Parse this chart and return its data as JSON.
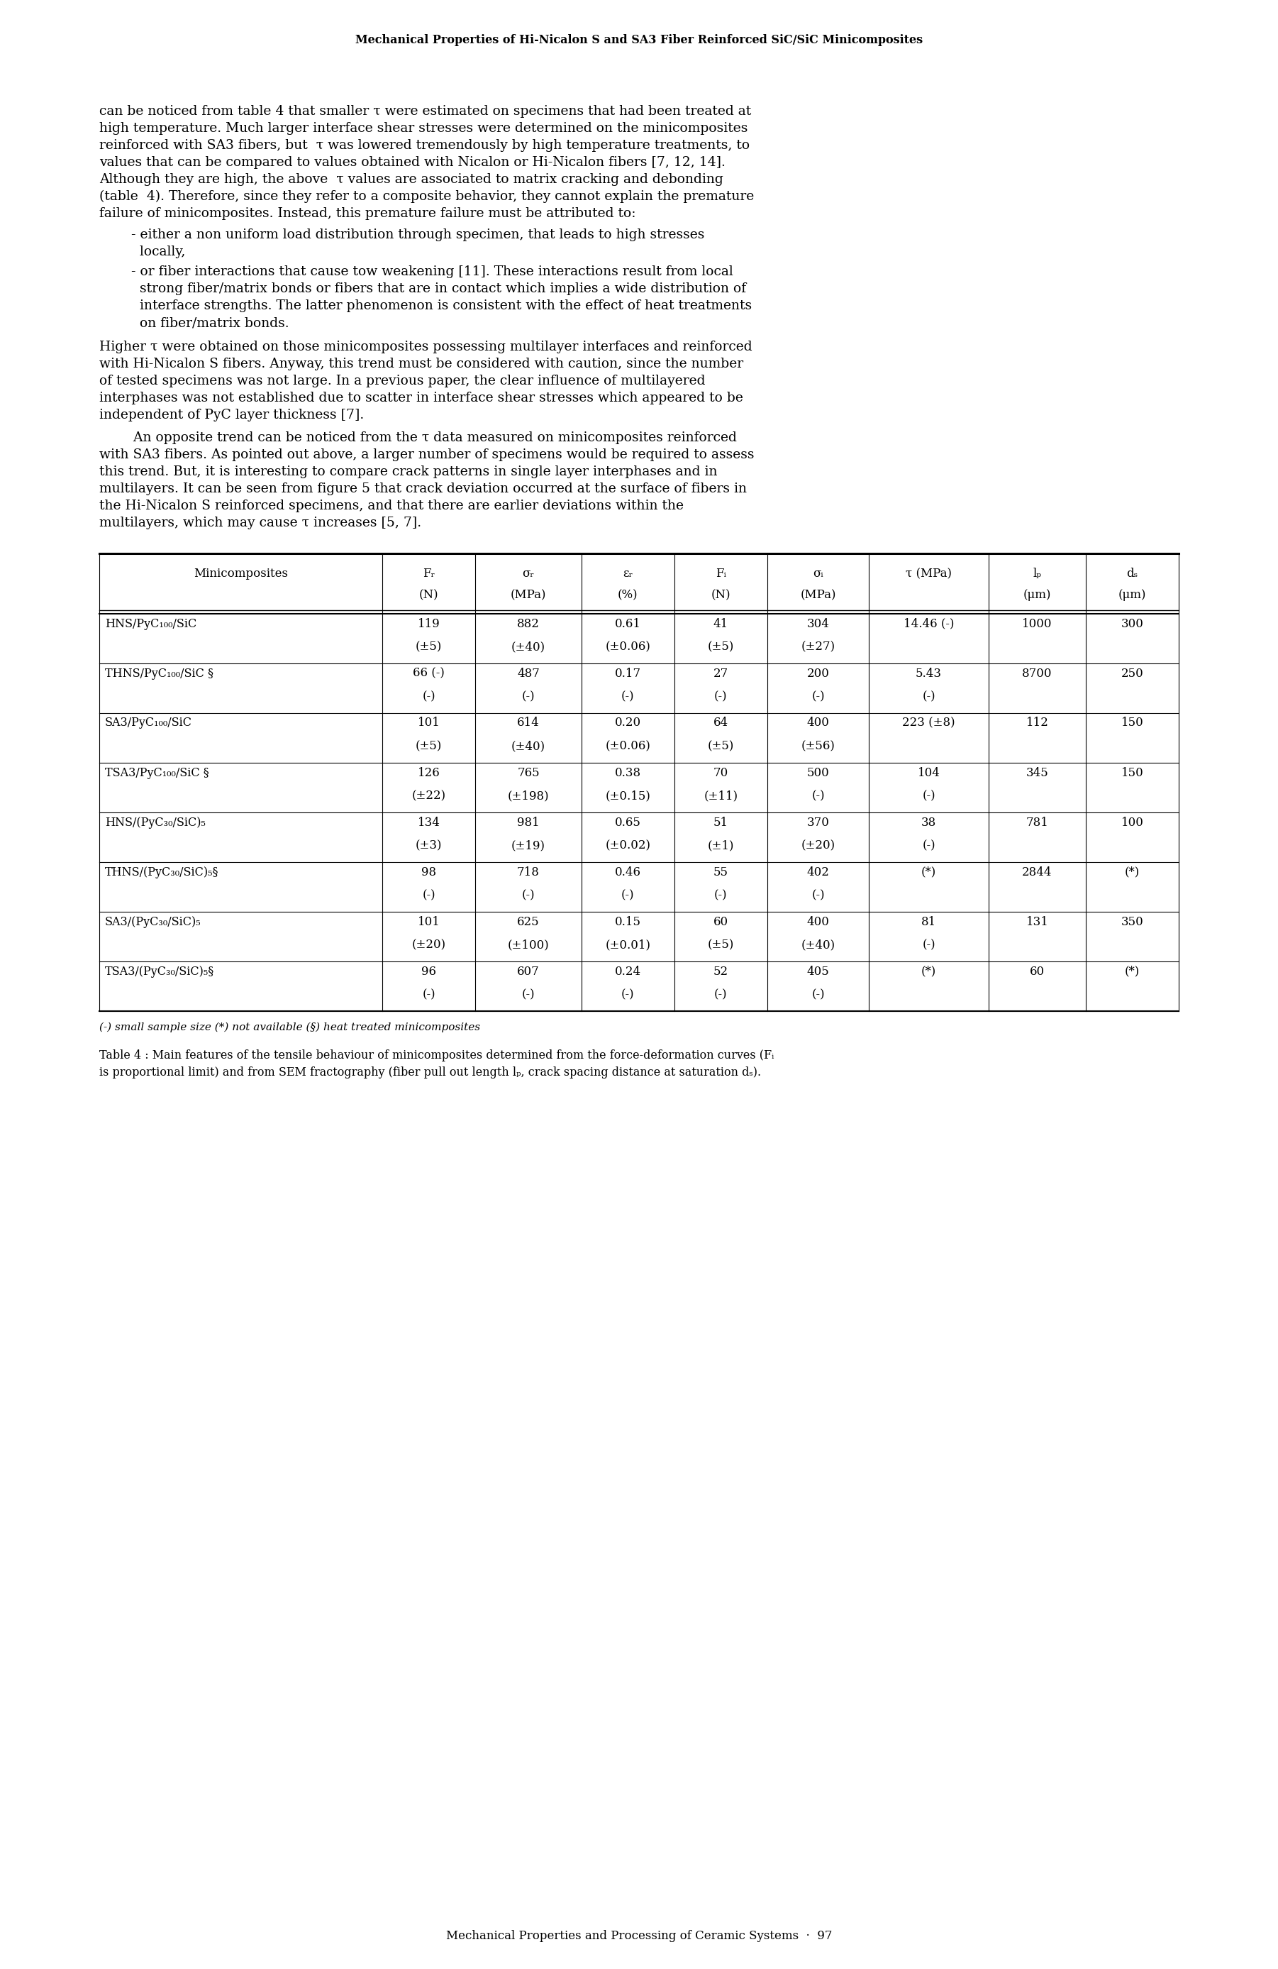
{
  "page_header": "Mechanical Properties of Hi-Nicalon S and SA3 Fiber Reinforced SiC/SiC Minicomposites",
  "page_footer": "Mechanical Properties and Processing of Ceramic Systems  ·  97",
  "para1_lines": [
    "can be noticed from table 4 that smaller τ were estimated on specimens that had been treated at",
    "high temperature. Much larger interface shear stresses were determined on the minicomposites",
    "reinforced with SA3 fibers, but  τ was lowered tremendously by high temperature treatments, to",
    "values that can be compared to values obtained with Nicalon or Hi-Nicalon fibers [7, 12, 14].",
    "Although they are high, the above  τ values are associated to matrix cracking and debonding",
    "(table  4). Therefore, since they refer to a composite behavior, they cannot explain the premature",
    "failure of minicomposites. Instead, this premature failure must be attributed to:"
  ],
  "bullet1_lines": [
    "- either a non uniform load distribution through specimen, that leads to high stresses",
    "  locally,"
  ],
  "bullet2_lines": [
    "- or fiber interactions that cause tow weakening [11]. These interactions result from local",
    "  strong fiber/matrix bonds or fibers that are in contact which implies a wide distribution of",
    "  interface strengths. The latter phenomenon is consistent with the effect of heat treatments",
    "  on fiber/matrix bonds."
  ],
  "para2_lines": [
    "Higher τ were obtained on those minicomposites possessing multilayer interfaces and reinforced",
    "with Hi-Nicalon S fibers. Anyway, this trend must be considered with caution, since the number",
    "of tested specimens was not large. In a previous paper, the clear influence of multilayered",
    "interphases was not established due to scatter in interface shear stresses which appeared to be",
    "independent of PyC layer thickness [7]."
  ],
  "para3_lines": [
    "        An opposite trend can be noticed from the τ data measured on minicomposites reinforced",
    "with SA3 fibers. As pointed out above, a larger number of specimens would be required to assess",
    "this trend. But, it is interesting to compare crack patterns in single layer interphases and in",
    "multilayers. It can be seen from figure 5 that crack deviation occurred at the surface of fibers in",
    "the Hi-Nicalon S reinforced specimens, and that there are earlier deviations within the",
    "multilayers, which may cause τ increases [5, 7]."
  ],
  "table_note": "(-) small sample size (*) not available (§) heat treated minicomposites",
  "table_caption_line1": "Table 4 : Main features of the tensile behaviour of minicomposites determined from the force-deformation curves (Fᵢ",
  "table_caption_line2": "is proportional limit) and from SEM fractography (fiber pull out length lₚ, crack spacing distance at saturation dₛ).",
  "col_headers_line1": [
    "Minicomposites",
    "Fᵣ",
    "σᵣ",
    "εᵣ",
    "Fᵢ",
    "σᵢ",
    "τ (MPa)",
    "lₚ",
    "dₛ"
  ],
  "col_headers_line2": [
    "",
    "(N)",
    "(MPa)",
    "(%)",
    "(N)",
    "(MPa)",
    "",
    "(μm)",
    "(μm)"
  ],
  "table_rows": [
    [
      "HNS/PyC₁₀₀/SiC",
      "119",
      "882",
      "0.61",
      "41",
      "304",
      "14.46 (-)",
      "1000",
      "300"
    ],
    [
      "",
      "(±5)",
      "(±40)",
      "(±0.06)",
      "(±5)",
      "(±27)",
      "",
      "",
      ""
    ],
    [
      "THNS/PyC₁₀₀/SiC §",
      "66 (-)",
      "487",
      "0.17",
      "27",
      "200",
      "5.43",
      "8700",
      "250"
    ],
    [
      "",
      "(-)",
      "(-)",
      "(-)",
      "(-)",
      "(-)",
      "(-)",
      "",
      ""
    ],
    [
      "SA3/PyC₁₀₀/SiC",
      "101",
      "614",
      "0.20",
      "64",
      "400",
      "223 (±8)",
      "112",
      "150"
    ],
    [
      "",
      "(±5)",
      "(±40)",
      "(±0.06)",
      "(±5)",
      "(±56)",
      "",
      "",
      ""
    ],
    [
      "TSA3/PyC₁₀₀/SiC §",
      "126",
      "765",
      "0.38",
      "70",
      "500",
      "104",
      "345",
      "150"
    ],
    [
      "",
      "(±22)",
      "(±198)",
      "(±0.15)",
      "(±11)",
      "(-)",
      "(-)",
      "",
      ""
    ],
    [
      "HNS/(PyC₃₀/SiC)₅",
      "134",
      "981",
      "0.65",
      "51",
      "370",
      "38",
      "781",
      "100"
    ],
    [
      "",
      "(±3)",
      "(±19)",
      "(±0.02)",
      "(±1)",
      "(±20)",
      "(-)",
      "",
      ""
    ],
    [
      "THNS/(PyC₃₀/SiC)₅§",
      "98",
      "718",
      "0.46",
      "55",
      "402",
      "(*)",
      "2844",
      "(*)"
    ],
    [
      "",
      "(-)",
      "(-)",
      "(-)",
      "(-)",
      "(-)",
      "",
      "",
      ""
    ],
    [
      "SA3/(PyC₃₀/SiC)₅",
      "101",
      "625",
      "0.15",
      "60",
      "400",
      "81",
      "131",
      "350"
    ],
    [
      "",
      "(±20)",
      "(±100)",
      "(±0.01)",
      "(±5)",
      "(±40)",
      "(-)",
      "",
      ""
    ],
    [
      "TSA3/(PyC₃₀/SiC)₅§",
      "96",
      "607",
      "0.24",
      "52",
      "405",
      "(*)",
      "60",
      "(*)"
    ],
    [
      "",
      "(-)",
      "(-)",
      "(-)",
      "(-)",
      "(-)",
      "",
      "",
      ""
    ]
  ],
  "row_group_borders": [
    0,
    2,
    4,
    6,
    8,
    10,
    12,
    14,
    16
  ],
  "bg_color": "#ffffff"
}
